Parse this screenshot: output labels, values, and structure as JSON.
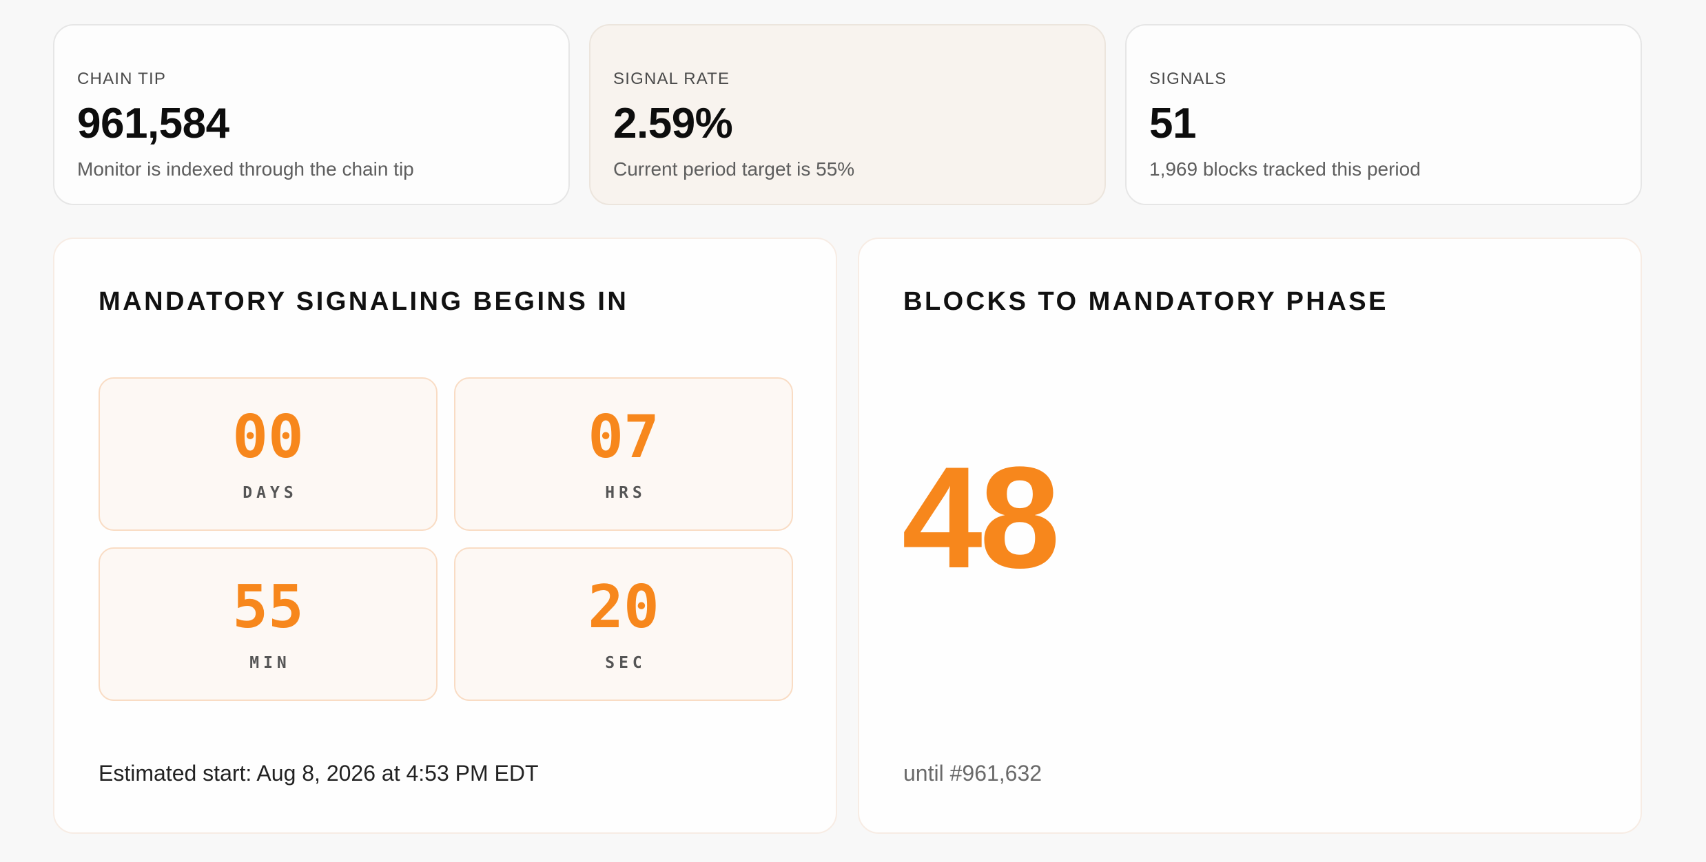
{
  "stats": [
    {
      "label": "CHAIN TIP",
      "value": "961,584",
      "sub": "Monitor is indexed through the chain tip"
    },
    {
      "label": "SIGNAL RATE",
      "value": "2.59%",
      "sub": "Current period target is 55%"
    },
    {
      "label": "SIGNALS",
      "value": "51",
      "sub": "1,969 blocks tracked this period"
    }
  ],
  "countdown": {
    "title": "MANDATORY SIGNALING BEGINS IN",
    "days": {
      "value": "00",
      "unit": "DAYS"
    },
    "hours": {
      "value": "07",
      "unit": "HRS"
    },
    "minutes": {
      "value": "55",
      "unit": "MIN"
    },
    "seconds": {
      "value": "20",
      "unit": "SEC"
    },
    "estimated_start": "Estimated start: Aug 8, 2026 at 4:53 PM EDT"
  },
  "blocks": {
    "title": "BLOCKS TO MANDATORY PHASE",
    "value": "48",
    "until": "until #961,632"
  },
  "colors": {
    "accent": "#f7871c",
    "highlight_card_bg": "#f8f3ee",
    "countdown_box_bg": "#fdf8f4",
    "countdown_box_border": "#f9dcc4"
  }
}
